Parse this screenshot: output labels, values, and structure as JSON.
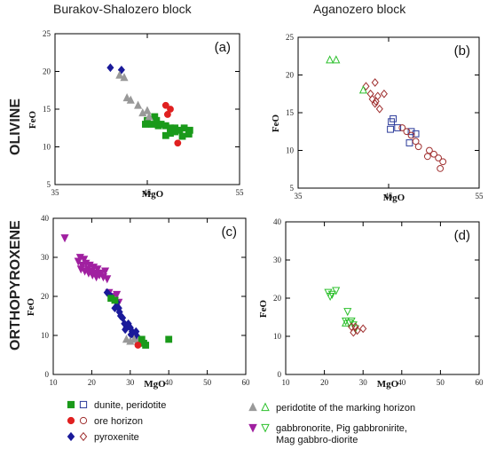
{
  "headers": {
    "col_left": "Burakov-Shalozero block",
    "col_right": "Aganozero block",
    "row_top": "OLIVINE",
    "row_bottom": "ORTHOPYROXENE"
  },
  "legend": [
    {
      "label": "dunite, peridotite",
      "filled_marker": "square",
      "open_marker": "square",
      "filled_color": "#1a9a1a",
      "open_color": "#2b3a9a"
    },
    {
      "label": "ore horizon",
      "filled_marker": "circle",
      "open_marker": "circle",
      "filled_color": "#e02020",
      "open_color": "#a03030"
    },
    {
      "label": "pyroxenite",
      "filled_marker": "diamond",
      "open_marker": "diamond",
      "filled_color": "#1a1a9a",
      "open_color": "#a03030"
    },
    {
      "label": "peridotite of the marking horizon",
      "filled_marker": "triangle",
      "open_marker": "triangle",
      "filled_color": "#999999",
      "open_color": "#2cc02c"
    },
    {
      "label": "gabbronorite, Pig gabbronirite,",
      "label2": "Mag gabbro-diorite",
      "filled_marker": "triangle-down",
      "open_marker": "triangle-down",
      "filled_color": "#a020a0",
      "open_color": "#2cc02c"
    }
  ],
  "chart_data": [
    {
      "id": "a",
      "panel_label": "(a)",
      "type": "scatter",
      "xlabel": "MgO",
      "ylabel": "FeO",
      "xlim": [
        35,
        55
      ],
      "ylim": [
        5,
        25
      ],
      "xticks": [
        35,
        45,
        55
      ],
      "yticks": [
        5,
        10,
        15,
        20,
        25
      ],
      "series": [
        {
          "marker": "square",
          "filled": true,
          "color": "#1a9a1a",
          "points": [
            [
              45,
              13.5
            ],
            [
              45.5,
              13
            ],
            [
              46,
              13.5
            ],
            [
              46.5,
              13
            ],
            [
              47,
              12.8
            ],
            [
              47.5,
              12.5
            ],
            [
              48,
              12.5
            ],
            [
              48.5,
              12.2
            ],
            [
              49,
              12.5
            ],
            [
              49.5,
              11.7
            ],
            [
              47,
              11.5
            ],
            [
              47.5,
              11.8
            ],
            [
              48,
              12
            ],
            [
              45.8,
              14
            ],
            [
              46.2,
              12.8
            ],
            [
              48.8,
              11.4
            ],
            [
              49.6,
              12.2
            ],
            [
              44.8,
              13
            ]
          ]
        },
        {
          "marker": "circle",
          "filled": true,
          "color": "#e02020",
          "points": [
            [
              47,
              15.5
            ],
            [
              47.5,
              15
            ],
            [
              47.2,
              14.3
            ],
            [
              48.3,
              10.5
            ]
          ]
        },
        {
          "marker": "diamond",
          "filled": true,
          "color": "#1a1a9a",
          "points": [
            [
              41,
              20.5
            ],
            [
              42.2,
              20.2
            ]
          ]
        },
        {
          "marker": "triangle",
          "filled": true,
          "color": "#999999",
          "points": [
            [
              42,
              19.5
            ],
            [
              42.5,
              19.2
            ],
            [
              42.8,
              16.5
            ],
            [
              43.2,
              16.2
            ],
            [
              44,
              15.5
            ],
            [
              44.5,
              14.5
            ],
            [
              45,
              14.8
            ],
            [
              45.2,
              14
            ]
          ]
        }
      ]
    },
    {
      "id": "b",
      "panel_label": "(b)",
      "type": "scatter",
      "xlabel": "MgO",
      "ylabel": "FeO",
      "xlim": [
        35,
        55
      ],
      "ylim": [
        5,
        25
      ],
      "xticks": [
        35,
        45,
        55
      ],
      "yticks": [
        5,
        10,
        15,
        20,
        25
      ],
      "series": [
        {
          "marker": "square",
          "filled": false,
          "color": "#2b3a9a",
          "points": [
            [
              45.5,
              14.2
            ],
            [
              45.3,
              13.8
            ],
            [
              45.2,
              12.8
            ],
            [
              46,
              13
            ],
            [
              47.5,
              12.5
            ],
            [
              48,
              12.2
            ],
            [
              47.3,
              11
            ]
          ]
        },
        {
          "marker": "circle",
          "filled": false,
          "color": "#a03030",
          "points": [
            [
              46.5,
              13
            ],
            [
              47,
              12.5
            ],
            [
              47.5,
              12
            ],
            [
              48,
              11.2
            ],
            [
              48.3,
              10.5
            ],
            [
              49.5,
              10
            ],
            [
              50,
              9.5
            ],
            [
              50.5,
              9
            ],
            [
              51,
              8.5
            ],
            [
              50.7,
              7.6
            ],
            [
              49.3,
              9.2
            ]
          ]
        },
        {
          "marker": "diamond",
          "filled": false,
          "color": "#a03030",
          "points": [
            [
              42.5,
              18.5
            ],
            [
              43.5,
              19
            ],
            [
              43,
              17.5
            ],
            [
              43.8,
              17.2
            ],
            [
              44.5,
              17.5
            ],
            [
              43.2,
              16.8
            ],
            [
              43.5,
              16.2
            ],
            [
              44,
              15.5
            ],
            [
              43.6,
              16.5
            ]
          ]
        },
        {
          "marker": "triangle",
          "filled": false,
          "color": "#2cc02c",
          "points": [
            [
              38.5,
              22
            ],
            [
              39.2,
              22
            ],
            [
              42.2,
              18
            ]
          ]
        }
      ]
    },
    {
      "id": "c",
      "panel_label": "(c)",
      "type": "scatter",
      "xlabel": "MgO",
      "ylabel": "FeO",
      "xlim": [
        10,
        60
      ],
      "ylim": [
        0,
        40
      ],
      "xticks": [
        10,
        20,
        30,
        40,
        50,
        60
      ],
      "yticks": [
        0,
        10,
        20,
        30,
        40
      ],
      "series": [
        {
          "marker": "triangle-down",
          "filled": true,
          "color": "#a020a0",
          "points": [
            [
              13,
              35
            ],
            [
              16.5,
              29
            ],
            [
              17,
              30
            ],
            [
              17.5,
              28
            ],
            [
              18,
              29.5
            ],
            [
              18.5,
              28.5
            ],
            [
              19,
              27
            ],
            [
              19.5,
              28
            ],
            [
              20,
              26.5
            ],
            [
              20.5,
              27.5
            ],
            [
              21,
              26
            ],
            [
              21.5,
              27
            ],
            [
              22,
              25.5
            ],
            [
              22.5,
              26
            ],
            [
              23,
              25
            ],
            [
              23.5,
              26.5
            ],
            [
              24,
              24.5
            ],
            [
              17.2,
              27
            ],
            [
              18.2,
              26.5
            ],
            [
              19.2,
              26
            ],
            [
              20.2,
              25.5
            ],
            [
              21.2,
              25
            ],
            [
              24.5,
              21
            ],
            [
              25.5,
              20
            ],
            [
              26,
              19
            ],
            [
              26.5,
              20.5
            ],
            [
              27,
              18.5
            ]
          ]
        },
        {
          "marker": "diamond",
          "filled": true,
          "color": "#1a1a9a",
          "points": [
            [
              24,
              21
            ],
            [
              25,
              20
            ],
            [
              26,
              17
            ],
            [
              26.5,
              18.5
            ],
            [
              27,
              17
            ],
            [
              27.5,
              15
            ],
            [
              28,
              14.5
            ],
            [
              28.5,
              13
            ],
            [
              29,
              12
            ],
            [
              29.5,
              13
            ],
            [
              30,
              12
            ],
            [
              30.5,
              11
            ],
            [
              31,
              10
            ],
            [
              31.5,
              11
            ],
            [
              32,
              9.5
            ],
            [
              27.2,
              16
            ],
            [
              28.7,
              11.5
            ],
            [
              30.2,
              10.2
            ]
          ]
        },
        {
          "marker": "triangle",
          "filled": true,
          "color": "#999999",
          "points": [
            [
              29,
              9
            ],
            [
              30,
              8.5
            ],
            [
              31,
              9
            ],
            [
              32,
              8.5
            ],
            [
              33,
              8.5
            ]
          ]
        },
        {
          "marker": "square",
          "filled": true,
          "color": "#1a9a1a",
          "points": [
            [
              25,
              19.5
            ],
            [
              26,
              19
            ],
            [
              33,
              9
            ],
            [
              33.5,
              8
            ],
            [
              34,
              7.5
            ],
            [
              40,
              9
            ]
          ]
        },
        {
          "marker": "circle",
          "filled": true,
          "color": "#e02020",
          "points": [
            [
              32,
              7.5
            ]
          ]
        }
      ]
    },
    {
      "id": "d",
      "panel_label": "(d)",
      "type": "scatter",
      "xlabel": "MgO",
      "ylabel": "FeO",
      "xlim": [
        10,
        60
      ],
      "ylim": [
        0,
        40
      ],
      "xticks": [
        10,
        20,
        30,
        40,
        50,
        60
      ],
      "yticks": [
        0,
        10,
        20,
        30,
        40
      ],
      "series": [
        {
          "marker": "triangle-down",
          "filled": false,
          "color": "#2cc02c",
          "points": [
            [
              21,
              21.5
            ],
            [
              22,
              21
            ],
            [
              23,
              22
            ],
            [
              21.5,
              20.5
            ],
            [
              26,
              16.5
            ],
            [
              25.5,
              14
            ],
            [
              26.5,
              13.5
            ],
            [
              27,
              14
            ],
            [
              27.5,
              13
            ],
            [
              28,
              12
            ]
          ]
        },
        {
          "marker": "triangle",
          "filled": false,
          "color": "#2cc02c",
          "points": [
            [
              25.5,
              13.5
            ]
          ]
        },
        {
          "marker": "diamond",
          "filled": false,
          "color": "#a03030",
          "points": [
            [
              27,
              12.5
            ],
            [
              27.5,
              11
            ],
            [
              28,
              12.5
            ],
            [
              28.5,
              11.5
            ],
            [
              30,
              12
            ]
          ]
        }
      ]
    }
  ]
}
